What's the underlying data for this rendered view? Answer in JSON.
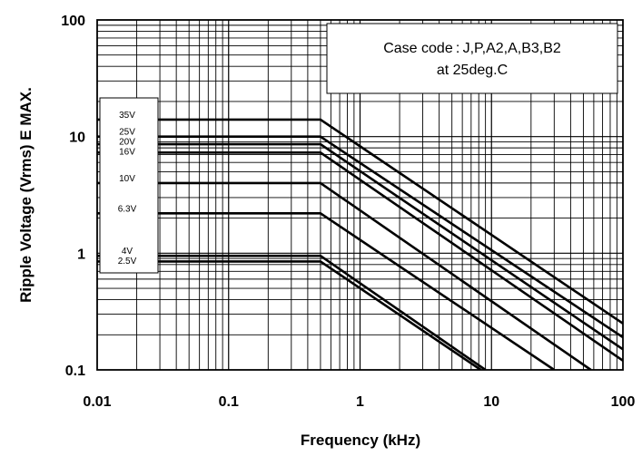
{
  "chart_data": {
    "type": "line",
    "scale": {
      "x": "log",
      "y": "log"
    },
    "grid": true,
    "xlim": [
      0.01,
      100
    ],
    "ylim": [
      0.1,
      100
    ],
    "xlabel": "Frequency (kHz)",
    "ylabel": "Ripple Voltage (Vrms) E MAX.",
    "x_ticks": [
      "0.01",
      "0.1",
      "1",
      "10",
      "100"
    ],
    "y_ticks": [
      "0.1",
      "1",
      "10",
      "100"
    ],
    "note": {
      "line1": "Case code : J,P,A2,A,B3,B2",
      "line2": "at 25deg.C"
    },
    "legend_placement": "left",
    "legend": [
      "35V",
      "25V",
      "20V",
      "16V",
      "10V",
      "6.3V",
      "4V",
      "2.5V"
    ],
    "series": [
      {
        "name": "35V",
        "points": [
          [
            0.01,
            14.0
          ],
          [
            0.5,
            14.0
          ],
          [
            100,
            0.25
          ]
        ]
      },
      {
        "name": "25V",
        "points": [
          [
            0.01,
            10.0
          ],
          [
            0.5,
            10.0
          ],
          [
            100,
            0.19
          ]
        ]
      },
      {
        "name": "20V",
        "points": [
          [
            0.01,
            8.6
          ],
          [
            0.5,
            8.6
          ],
          [
            100,
            0.15
          ]
        ]
      },
      {
        "name": "16V",
        "points": [
          [
            0.01,
            7.3
          ],
          [
            0.5,
            7.3
          ],
          [
            100,
            0.12
          ]
        ]
      },
      {
        "name": "10V",
        "points": [
          [
            0.01,
            4.0
          ],
          [
            0.5,
            4.0
          ],
          [
            57,
            0.1
          ]
        ]
      },
      {
        "name": "6.3V",
        "points": [
          [
            0.01,
            2.2
          ],
          [
            0.5,
            2.2
          ],
          [
            30,
            0.1
          ]
        ]
      },
      {
        "name": "4V",
        "points": [
          [
            0.01,
            0.95
          ],
          [
            0.5,
            0.95
          ],
          [
            9.0,
            0.1
          ]
        ]
      },
      {
        "name": "2.5V",
        "points": [
          [
            0.01,
            0.85
          ],
          [
            0.5,
            0.85
          ],
          [
            8.3,
            0.1
          ]
        ]
      }
    ]
  }
}
